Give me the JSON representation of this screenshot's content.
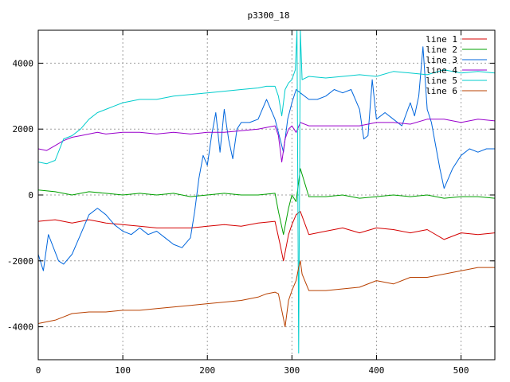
{
  "chart_data": {
    "type": "line",
    "title": "p3300_18",
    "xlabel": "",
    "ylabel": "",
    "xlim": [
      0,
      540
    ],
    "ylim": [
      -5000,
      5000
    ],
    "x_ticks": [
      0,
      100,
      200,
      300,
      400,
      500
    ],
    "y_ticks": [
      -4000,
      -2000,
      0,
      2000,
      4000
    ],
    "grid": true,
    "legend_position": "top-right",
    "series": [
      {
        "name": "line 1",
        "color": "#d40000",
        "x": [
          0,
          20,
          40,
          60,
          80,
          100,
          120,
          140,
          160,
          180,
          200,
          220,
          240,
          260,
          280,
          286,
          290,
          296,
          300,
          305,
          310,
          320,
          340,
          360,
          380,
          400,
          420,
          440,
          460,
          480,
          500,
          520,
          540
        ],
        "y": [
          -800,
          -750,
          -850,
          -750,
          -850,
          -900,
          -950,
          -1000,
          -1000,
          -1000,
          -950,
          -900,
          -950,
          -850,
          -800,
          -1500,
          -2000,
          -1200,
          -900,
          -600,
          -500,
          -1200,
          -1100,
          -1000,
          -1150,
          -1000,
          -1050,
          -1150,
          -1050,
          -1350,
          -1150,
          -1200,
          -1150
        ]
      },
      {
        "name": "line 2",
        "color": "#00a000",
        "x": [
          0,
          20,
          40,
          60,
          80,
          100,
          120,
          140,
          160,
          180,
          200,
          220,
          240,
          260,
          280,
          284,
          290,
          296,
          300,
          305,
          310,
          320,
          340,
          360,
          380,
          400,
          420,
          440,
          460,
          480,
          500,
          520,
          540
        ],
        "y": [
          150,
          100,
          0,
          100,
          50,
          0,
          50,
          0,
          50,
          -50,
          0,
          50,
          0,
          0,
          50,
          -500,
          -1200,
          -400,
          0,
          -200,
          800,
          -50,
          -50,
          0,
          -100,
          -50,
          0,
          -50,
          0,
          -100,
          -50,
          -50,
          -100
        ]
      },
      {
        "name": "line 3",
        "color": "#0066dd",
        "x": [
          0,
          6,
          12,
          18,
          24,
          30,
          40,
          50,
          60,
          70,
          80,
          90,
          100,
          110,
          120,
          130,
          140,
          150,
          160,
          170,
          180,
          185,
          190,
          195,
          200,
          205,
          210,
          215,
          220,
          225,
          230,
          235,
          240,
          250,
          260,
          270,
          280,
          285,
          290,
          295,
          300,
          305,
          310,
          320,
          330,
          340,
          350,
          360,
          370,
          380,
          385,
          390,
          395,
          400,
          410,
          420,
          430,
          440,
          445,
          450,
          455,
          460,
          465,
          470,
          475,
          480,
          490,
          500,
          510,
          520,
          530,
          540
        ],
        "y": [
          -1800,
          -2300,
          -1200,
          -1600,
          -2000,
          -2100,
          -1800,
          -1200,
          -600,
          -400,
          -600,
          -900,
          -1100,
          -1200,
          -1000,
          -1200,
          -1100,
          -1300,
          -1500,
          -1600,
          -1300,
          -500,
          500,
          1200,
          900,
          1800,
          2500,
          1300,
          2600,
          1700,
          1100,
          2000,
          2200,
          2200,
          2300,
          2900,
          2300,
          1800,
          1300,
          2300,
          2800,
          3200,
          3100,
          2900,
          2900,
          3000,
          3200,
          3100,
          3200,
          2600,
          1700,
          1800,
          3500,
          2300,
          2500,
          2300,
          2100,
          2800,
          2400,
          3000,
          4500,
          2600,
          2200,
          1500,
          800,
          200,
          800,
          1200,
          1400,
          1300,
          1400,
          1400
        ]
      },
      {
        "name": "line 4",
        "color": "#9900cc",
        "x": [
          0,
          10,
          20,
          30,
          40,
          50,
          60,
          70,
          80,
          100,
          120,
          140,
          160,
          180,
          200,
          220,
          240,
          260,
          270,
          280,
          284,
          288,
          292,
          296,
          300,
          305,
          310,
          320,
          340,
          360,
          380,
          400,
          420,
          440,
          460,
          480,
          500,
          520,
          540
        ],
        "y": [
          1400,
          1350,
          1500,
          1650,
          1750,
          1800,
          1850,
          1900,
          1850,
          1900,
          1900,
          1850,
          1900,
          1850,
          1900,
          1900,
          1950,
          2000,
          2050,
          2100,
          1800,
          1000,
          1700,
          2000,
          2100,
          1900,
          2200,
          2100,
          2100,
          2100,
          2100,
          2200,
          2200,
          2150,
          2300,
          2300,
          2200,
          2300,
          2250
        ]
      },
      {
        "name": "line 5",
        "color": "#00cccc",
        "x": [
          0,
          10,
          20,
          30,
          40,
          50,
          60,
          70,
          80,
          90,
          100,
          120,
          140,
          160,
          180,
          200,
          220,
          240,
          260,
          270,
          280,
          284,
          288,
          292,
          296,
          300,
          304,
          306,
          308,
          310,
          312,
          320,
          340,
          360,
          380,
          400,
          420,
          440,
          460,
          480,
          500,
          520,
          540
        ],
        "y": [
          1000,
          950,
          1050,
          1700,
          1800,
          2000,
          2300,
          2500,
          2600,
          2700,
          2800,
          2900,
          2900,
          3000,
          3050,
          3100,
          3150,
          3200,
          3250,
          3300,
          3300,
          3000,
          2400,
          3200,
          3400,
          3500,
          3800,
          5000,
          -4800,
          5000,
          3500,
          3600,
          3550,
          3600,
          3650,
          3600,
          3750,
          3700,
          3650,
          3800,
          3700,
          3750,
          3700
        ]
      },
      {
        "name": "line 6",
        "color": "#b84000",
        "x": [
          0,
          10,
          20,
          30,
          40,
          60,
          80,
          100,
          120,
          140,
          160,
          180,
          200,
          220,
          240,
          260,
          270,
          280,
          284,
          288,
          292,
          296,
          300,
          305,
          308,
          310,
          312,
          320,
          340,
          360,
          380,
          400,
          420,
          440,
          460,
          480,
          500,
          520,
          540
        ],
        "y": [
          -3900,
          -3850,
          -3800,
          -3700,
          -3600,
          -3550,
          -3550,
          -3500,
          -3500,
          -3450,
          -3400,
          -3350,
          -3300,
          -3250,
          -3200,
          -3100,
          -3000,
          -2950,
          -3000,
          -3500,
          -4000,
          -3200,
          -2900,
          -2600,
          -2200,
          -2000,
          -2400,
          -2900,
          -2900,
          -2850,
          -2800,
          -2600,
          -2700,
          -2500,
          -2500,
          -2400,
          -2300,
          -2200,
          -2200
        ]
      }
    ]
  }
}
